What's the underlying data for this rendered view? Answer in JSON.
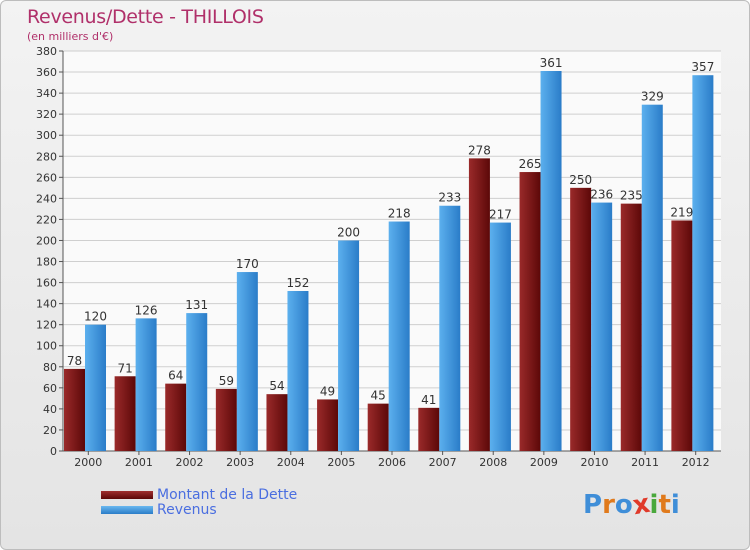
{
  "chart_data": {
    "type": "bar",
    "title": "Revenus/Dette - THILLOIS",
    "subtitle": "(en milliers d'€)",
    "categories": [
      "2000",
      "2001",
      "2002",
      "2003",
      "2004",
      "2005",
      "2006",
      "2007",
      "2008",
      "2009",
      "2010",
      "2011",
      "2012"
    ],
    "series": [
      {
        "name": "Montant de la Dette",
        "color": "#7a1010",
        "values": [
          78,
          71,
          64,
          59,
          54,
          49,
          45,
          41,
          278,
          265,
          250,
          235,
          219
        ]
      },
      {
        "name": "Revenus",
        "color": "#3a95dd",
        "values": [
          120,
          126,
          131,
          170,
          152,
          200,
          218,
          233,
          217,
          361,
          236,
          329,
          357
        ]
      }
    ],
    "yticks": [
      0,
      20,
      40,
      60,
      80,
      100,
      120,
      140,
      160,
      180,
      200,
      220,
      240,
      260,
      280,
      300,
      320,
      340,
      360,
      380
    ],
    "ylim": [
      0,
      380
    ],
    "grid": true,
    "legend_position": "bottom-left"
  },
  "brand": {
    "letters": [
      "P",
      "r",
      "o",
      "x",
      "i",
      "t",
      "i"
    ],
    "colors": [
      "#3f8ed8",
      "#e07a1c",
      "#3f8ed8",
      "#e03a2a",
      "#49a83c",
      "#e07a1c",
      "#3f8ed8"
    ]
  }
}
